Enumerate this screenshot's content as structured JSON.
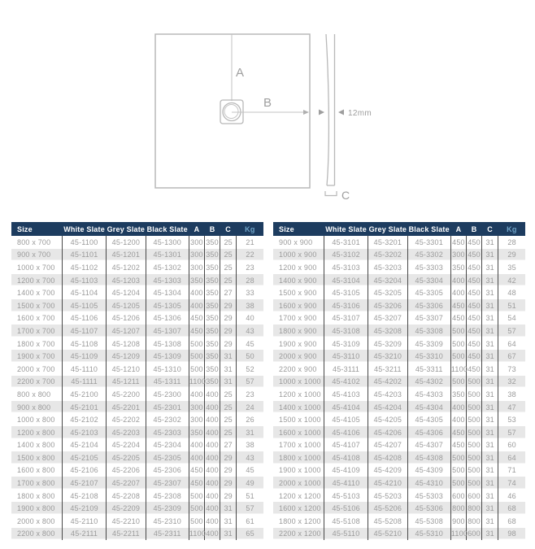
{
  "diagram": {
    "label_a": "A",
    "label_b": "B",
    "label_c": "C",
    "thickness_label": "12mm"
  },
  "tables": {
    "headers": [
      "Size",
      "White Slate",
      "Grey Slate",
      "Black Slate",
      "A",
      "B",
      "C",
      "Kg"
    ],
    "left_rows": [
      [
        "800 x 700",
        "45-1100",
        "45-1200",
        "45-1300",
        "300",
        "350",
        "25",
        "21"
      ],
      [
        "900 x 700",
        "45-1101",
        "45-1201",
        "45-1301",
        "300",
        "350",
        "25",
        "22"
      ],
      [
        "1000 x 700",
        "45-1102",
        "45-1202",
        "45-1302",
        "300",
        "350",
        "25",
        "23"
      ],
      [
        "1200 x 700",
        "45-1103",
        "45-1203",
        "45-1303",
        "350",
        "350",
        "25",
        "28"
      ],
      [
        "1400 x 700",
        "45-1104",
        "45-1204",
        "45-1304",
        "400",
        "350",
        "27",
        "33"
      ],
      [
        "1500 x 700",
        "45-1105",
        "45-1205",
        "45-1305",
        "400",
        "350",
        "29",
        "38"
      ],
      [
        "1600 x 700",
        "45-1106",
        "45-1206",
        "45-1306",
        "450",
        "350",
        "29",
        "40"
      ],
      [
        "1700 x 700",
        "45-1107",
        "45-1207",
        "45-1307",
        "450",
        "350",
        "29",
        "43"
      ],
      [
        "1800 x 700",
        "45-1108",
        "45-1208",
        "45-1308",
        "500",
        "350",
        "29",
        "45"
      ],
      [
        "1900 x 700",
        "45-1109",
        "45-1209",
        "45-1309",
        "500",
        "350",
        "31",
        "50"
      ],
      [
        "2000 x 700",
        "45-1110",
        "45-1210",
        "45-1310",
        "500",
        "350",
        "31",
        "52"
      ],
      [
        "2200 x 700",
        "45-1111",
        "45-1211",
        "45-1311",
        "1100",
        "350",
        "31",
        "57"
      ],
      [
        "800 x 800",
        "45-2100",
        "45-2200",
        "45-2300",
        "400",
        "400",
        "25",
        "23"
      ],
      [
        "900 x 800",
        "45-2101",
        "45-2201",
        "45-2301",
        "300",
        "400",
        "25",
        "24"
      ],
      [
        "1000 x 800",
        "45-2102",
        "45-2202",
        "45-2302",
        "300",
        "400",
        "25",
        "26"
      ],
      [
        "1200 x 800",
        "45-2103",
        "45-2203",
        "45-2303",
        "350",
        "400",
        "25",
        "31"
      ],
      [
        "1400 x 800",
        "45-2104",
        "45-2204",
        "45-2304",
        "400",
        "400",
        "27",
        "38"
      ],
      [
        "1500 x 800",
        "45-2105",
        "45-2205",
        "45-2305",
        "400",
        "400",
        "29",
        "43"
      ],
      [
        "1600 x 800",
        "45-2106",
        "45-2206",
        "45-2306",
        "450",
        "400",
        "29",
        "45"
      ],
      [
        "1700 x 800",
        "45-2107",
        "45-2207",
        "45-2307",
        "450",
        "400",
        "29",
        "49"
      ],
      [
        "1800 x 800",
        "45-2108",
        "45-2208",
        "45-2308",
        "500",
        "400",
        "29",
        "51"
      ],
      [
        "1900 x 800",
        "45-2109",
        "45-2209",
        "45-2309",
        "500",
        "400",
        "31",
        "57"
      ],
      [
        "2000 x 800",
        "45-2110",
        "45-2210",
        "45-2310",
        "500",
        "400",
        "31",
        "61"
      ],
      [
        "2200 x 800",
        "45-2111",
        "45-2211",
        "45-2311",
        "1100",
        "400",
        "31",
        "65"
      ]
    ],
    "right_rows": [
      [
        "900 x 900",
        "45-3101",
        "45-3201",
        "45-3301",
        "450",
        "450",
        "31",
        "28"
      ],
      [
        "1000 x 900",
        "45-3102",
        "45-3202",
        "45-3302",
        "300",
        "450",
        "31",
        "29"
      ],
      [
        "1200 x 900",
        "45-3103",
        "45-3203",
        "45-3303",
        "350",
        "450",
        "31",
        "35"
      ],
      [
        "1400 x 900",
        "45-3104",
        "45-3204",
        "45-3304",
        "400",
        "450",
        "31",
        "42"
      ],
      [
        "1500 x 900",
        "45-3105",
        "45-3205",
        "45-3305",
        "400",
        "450",
        "31",
        "48"
      ],
      [
        "1600 x 900",
        "45-3106",
        "45-3206",
        "45-3306",
        "450",
        "450",
        "31",
        "51"
      ],
      [
        "1700 x 900",
        "45-3107",
        "45-3207",
        "45-3307",
        "450",
        "450",
        "31",
        "54"
      ],
      [
        "1800 x 900",
        "45-3108",
        "45-3208",
        "45-3308",
        "500",
        "450",
        "31",
        "57"
      ],
      [
        "1900 x 900",
        "45-3109",
        "45-3209",
        "45-3309",
        "500",
        "450",
        "31",
        "64"
      ],
      [
        "2000 x 900",
        "45-3110",
        "45-3210",
        "45-3310",
        "500",
        "450",
        "31",
        "67"
      ],
      [
        "2200 x 900",
        "45-3111",
        "45-3211",
        "45-3311",
        "1100",
        "450",
        "31",
        "73"
      ],
      [
        "1000 x 1000",
        "45-4102",
        "45-4202",
        "45-4302",
        "500",
        "500",
        "31",
        "32"
      ],
      [
        "1200 x 1000",
        "45-4103",
        "45-4203",
        "45-4303",
        "350",
        "500",
        "31",
        "38"
      ],
      [
        "1400 x 1000",
        "45-4104",
        "45-4204",
        "45-4304",
        "400",
        "500",
        "31",
        "47"
      ],
      [
        "1500 x 1000",
        "45-4105",
        "45-4205",
        "45-4305",
        "400",
        "500",
        "31",
        "53"
      ],
      [
        "1600 x 1000",
        "45-4106",
        "45-4206",
        "45-4306",
        "450",
        "500",
        "31",
        "57"
      ],
      [
        "1700 x 1000",
        "45-4107",
        "45-4207",
        "45-4307",
        "450",
        "500",
        "31",
        "60"
      ],
      [
        "1800 x 1000",
        "45-4108",
        "45-4208",
        "45-4308",
        "500",
        "500",
        "31",
        "64"
      ],
      [
        "1900 x 1000",
        "45-4109",
        "45-4209",
        "45-4309",
        "500",
        "500",
        "31",
        "71"
      ],
      [
        "2000 x 1000",
        "45-4110",
        "45-4210",
        "45-4310",
        "500",
        "500",
        "31",
        "74"
      ],
      [
        "1200 x 1200",
        "45-5103",
        "45-5203",
        "45-5303",
        "600",
        "600",
        "31",
        "46"
      ],
      [
        "1600 x 1200",
        "45-5106",
        "45-5206",
        "45-5306",
        "800",
        "800",
        "31",
        "68"
      ],
      [
        "1800 x 1200",
        "45-5108",
        "45-5208",
        "45-5308",
        "900",
        "800",
        "31",
        "68"
      ],
      [
        "2200 x 1200",
        "45-5110",
        "45-5210",
        "45-5310",
        "1100",
        "600",
        "31",
        "98"
      ]
    ]
  },
  "colors": {
    "header_bg": "#1d3c5f",
    "header_text": "#ffffff",
    "kg_header_text": "#6fa3c7",
    "row_stripe": "#e7e7e7",
    "data_text": "#9a9a9a",
    "divider": "#474747",
    "diagram_stroke": "#b8b8b8",
    "diagram_text": "#9e9e9e"
  }
}
